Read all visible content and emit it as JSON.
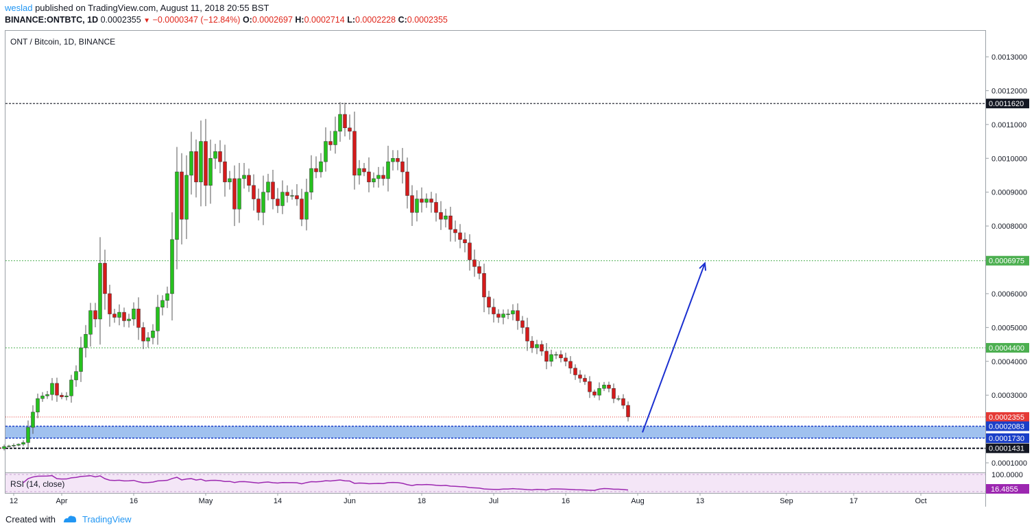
{
  "header": {
    "author": "weslad",
    "published_text": " published on TradingView.com, August 11, 2018 20:55 BST",
    "symbol": "BINANCE:ONTBTC, 1D",
    "last": "0.0002355",
    "change": "−0.0000347 (−12.84%)",
    "o_label": "O:",
    "o": "0.0002697",
    "h_label": "H:",
    "h": "0.0002714",
    "l_label": "L:",
    "l": "0.0002228",
    "c_label": "C:",
    "c": "0.0002355"
  },
  "chart_data": {
    "type": "candlestick",
    "legend_title": "ONT / Bitcoin, 1D, BINANCE",
    "y_range": [
      8e-05,
      0.0014
    ],
    "y_ticks": [
      "0.0013000",
      "0.0012000",
      "0.0011000",
      "0.0010000",
      "0.0009000",
      "0.0008000",
      "0.0006000",
      "0.0005000",
      "0.0004000",
      "0.0003000",
      "0.0001000"
    ],
    "x_ticks": [
      "12",
      "Apr",
      "16",
      "May",
      "14",
      "Jun",
      "18",
      "Jul",
      "16",
      "Aug",
      "13",
      "Sep",
      "17",
      "Oct"
    ],
    "x_tick_days": [
      12,
      22,
      37,
      52,
      67,
      82,
      97,
      112,
      127,
      142,
      155,
      173,
      187,
      201
    ],
    "day_zero": "2018-03-01",
    "closes": [
      0.000158,
      0.000155,
      0.00015,
      0.000165,
      0.000183,
      0.000178,
      0.00015,
      0.000148,
      0.000145,
      0.000142,
      0.000148,
      0.00015,
      0.000152,
      0.000155,
      0.00016,
      0.000205,
      0.00025,
      0.00029,
      0.000298,
      0.000302,
      0.000335,
      0.0003,
      0.000295,
      0.000298,
      0.000345,
      0.00037,
      0.00044,
      0.00048,
      0.00055,
      0.000525,
      0.00069,
      0.0006,
      0.00054,
      0.00053,
      0.000545,
      0.00052,
      0.000525,
      0.000555,
      0.0005,
      0.00046,
      0.00047,
      0.00049,
      0.00056,
      0.00058,
      0.0006,
      0.00076,
      0.00096,
      0.00082,
      0.00095,
      0.00102,
      0.00093,
      0.00105,
      0.00092,
      0.001,
      0.00102,
      0.00099,
      0.00093,
      0.00094,
      0.00085,
      0.00094,
      0.00095,
      0.00092,
      0.00088,
      0.00084,
      0.0009,
      0.00093,
      0.00088,
      0.00086,
      0.0009,
      0.00089,
      0.00089,
      0.00088,
      0.00082,
      0.0009,
      0.00097,
      0.00096,
      0.00099,
      0.00105,
      0.00104,
      0.00108,
      0.00113,
      0.00109,
      0.00108,
      0.00095,
      0.00097,
      0.00096,
      0.00093,
      0.00094,
      0.00095,
      0.00094,
      0.00099,
      0.001,
      0.00099,
      0.00096,
      0.00089,
      0.00084,
      0.00088,
      0.00087,
      0.00088,
      0.00087,
      0.00084,
      0.00082,
      0.00083,
      0.00079,
      0.00078,
      0.00076,
      0.00075,
      0.0007,
      0.00068,
      0.00066,
      0.00059,
      0.00056,
      0.00054,
      0.00053,
      0.00054,
      0.00054,
      0.00055,
      0.00052,
      0.0005,
      0.00046,
      0.00044,
      0.00045,
      0.00043,
      0.0004,
      0.00042,
      0.00042,
      0.00041,
      0.0004,
      0.00038,
      0.00036,
      0.00035,
      0.00034,
      0.00031,
      0.0003,
      0.00032,
      0.00033,
      0.00032,
      0.00029,
      0.00029,
      0.00027,
      0.000236
    ],
    "annotations": {
      "resistance_1": "0.0011620",
      "resistance_2": "0.0006975",
      "resistance_3": "0.0004400",
      "last_price": "0.0002355",
      "zone_top": "0.0002083",
      "zone_bottom": "0.0001730",
      "support": "0.0001431"
    },
    "rsi": {
      "label": "RSI (14, close)",
      "upper": "100.0000",
      "value": "16.4855"
    },
    "colors": {
      "up": "#26c11e",
      "down": "#d41b1b",
      "zone": "#8fb6ec",
      "zone_border": "#1a3fc8",
      "arrow": "#1a2fd0",
      "rsi_line": "#9c27b0",
      "rsi_bg": "#f4e6f7",
      "resist_green": "#4caf50",
      "last_red": "#e53935"
    }
  },
  "footer": {
    "created_with": "Created with",
    "brand": "TradingView"
  }
}
